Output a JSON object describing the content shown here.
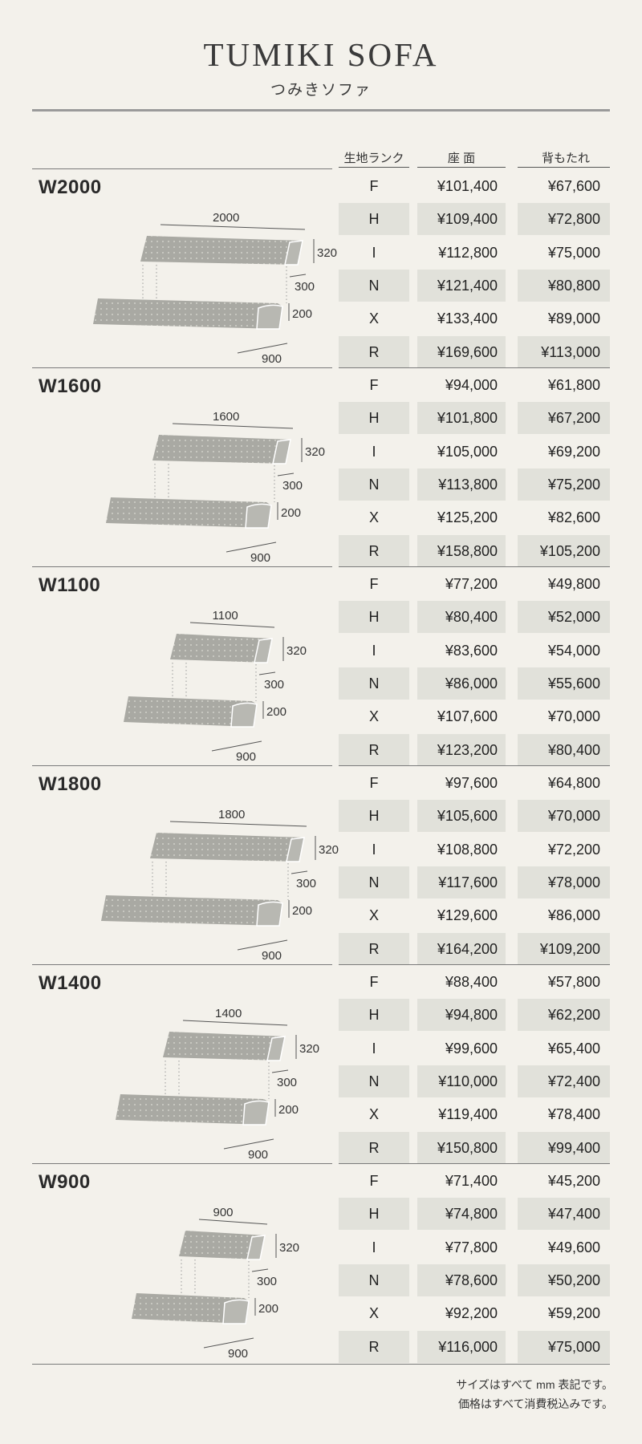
{
  "title": "TUMIKI SOFA",
  "subtitle": "つみきソファ",
  "columns": {
    "rank": "生地ランク",
    "seat": "座 面",
    "back": "背もたれ"
  },
  "notes": [
    "サイズはすべて mm 表記です。",
    "価格はすべて消費税込みです。"
  ],
  "colors": {
    "background": "#f3f1eb",
    "shade": "#e1e1da",
    "sofa": "#a9a9a3"
  },
  "models": [
    {
      "name": "W2000",
      "width_label": "2000",
      "height_label": "320",
      "depth_label": "300",
      "seat_label": "200",
      "length_label": "900",
      "rows": [
        {
          "rank": "F",
          "seat": "¥101,400",
          "back": "¥67,600"
        },
        {
          "rank": "H",
          "seat": "¥109,400",
          "back": "¥72,800"
        },
        {
          "rank": "I",
          "seat": "¥112,800",
          "back": "¥75,000"
        },
        {
          "rank": "N",
          "seat": "¥121,400",
          "back": "¥80,800"
        },
        {
          "rank": "X",
          "seat": "¥133,400",
          "back": "¥89,000"
        },
        {
          "rank": "R",
          "seat": "¥169,600",
          "back": "¥113,000"
        }
      ]
    },
    {
      "name": "W1600",
      "width_label": "1600",
      "height_label": "320",
      "depth_label": "300",
      "seat_label": "200",
      "length_label": "900",
      "rows": [
        {
          "rank": "F",
          "seat": "¥94,000",
          "back": "¥61,800"
        },
        {
          "rank": "H",
          "seat": "¥101,800",
          "back": "¥67,200"
        },
        {
          "rank": "I",
          "seat": "¥105,000",
          "back": "¥69,200"
        },
        {
          "rank": "N",
          "seat": "¥113,800",
          "back": "¥75,200"
        },
        {
          "rank": "X",
          "seat": "¥125,200",
          "back": "¥82,600"
        },
        {
          "rank": "R",
          "seat": "¥158,800",
          "back": "¥105,200"
        }
      ]
    },
    {
      "name": "W1100",
      "width_label": "1100",
      "height_label": "320",
      "depth_label": "300",
      "seat_label": "200",
      "length_label": "900",
      "rows": [
        {
          "rank": "F",
          "seat": "¥77,200",
          "back": "¥49,800"
        },
        {
          "rank": "H",
          "seat": "¥80,400",
          "back": "¥52,000"
        },
        {
          "rank": "I",
          "seat": "¥83,600",
          "back": "¥54,000"
        },
        {
          "rank": "N",
          "seat": "¥86,000",
          "back": "¥55,600"
        },
        {
          "rank": "X",
          "seat": "¥107,600",
          "back": "¥70,000"
        },
        {
          "rank": "R",
          "seat": "¥123,200",
          "back": "¥80,400"
        }
      ]
    },
    {
      "name": "W1800",
      "width_label": "1800",
      "height_label": "320",
      "depth_label": "300",
      "seat_label": "200",
      "length_label": "900",
      "rows": [
        {
          "rank": "F",
          "seat": "¥97,600",
          "back": "¥64,800"
        },
        {
          "rank": "H",
          "seat": "¥105,600",
          "back": "¥70,000"
        },
        {
          "rank": "I",
          "seat": "¥108,800",
          "back": "¥72,200"
        },
        {
          "rank": "N",
          "seat": "¥117,600",
          "back": "¥78,000"
        },
        {
          "rank": "X",
          "seat": "¥129,600",
          "back": "¥86,000"
        },
        {
          "rank": "R",
          "seat": "¥164,200",
          "back": "¥109,200"
        }
      ]
    },
    {
      "name": "W1400",
      "width_label": "1400",
      "height_label": "320",
      "depth_label": "300",
      "seat_label": "200",
      "length_label": "900",
      "rows": [
        {
          "rank": "F",
          "seat": "¥88,400",
          "back": "¥57,800"
        },
        {
          "rank": "H",
          "seat": "¥94,800",
          "back": "¥62,200"
        },
        {
          "rank": "I",
          "seat": "¥99,600",
          "back": "¥65,400"
        },
        {
          "rank": "N",
          "seat": "¥110,000",
          "back": "¥72,400"
        },
        {
          "rank": "X",
          "seat": "¥119,400",
          "back": "¥78,400"
        },
        {
          "rank": "R",
          "seat": "¥150,800",
          "back": "¥99,400"
        }
      ]
    },
    {
      "name": "W900",
      "width_label": "900",
      "height_label": "320",
      "depth_label": "300",
      "seat_label": "200",
      "length_label": "900",
      "rows": [
        {
          "rank": "F",
          "seat": "¥71,400",
          "back": "¥45,200"
        },
        {
          "rank": "H",
          "seat": "¥74,800",
          "back": "¥47,400"
        },
        {
          "rank": "I",
          "seat": "¥77,800",
          "back": "¥49,600"
        },
        {
          "rank": "N",
          "seat": "¥78,600",
          "back": "¥50,200"
        },
        {
          "rank": "X",
          "seat": "¥92,200",
          "back": "¥59,200"
        },
        {
          "rank": "R",
          "seat": "¥116,000",
          "back": "¥75,000"
        }
      ]
    }
  ]
}
